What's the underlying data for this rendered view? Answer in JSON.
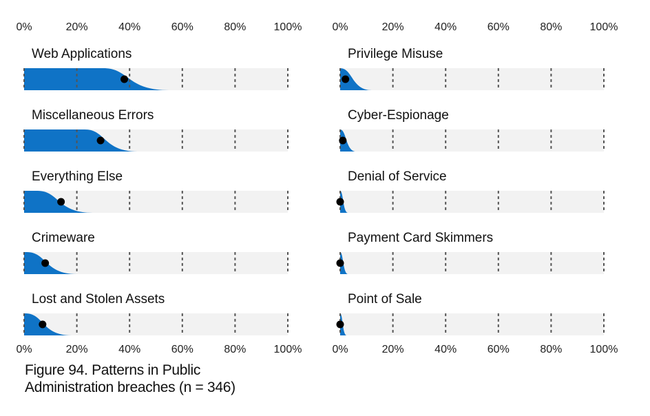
{
  "figure_caption": {
    "line1": "Figure 94. Patterns in Public",
    "line2": "Administration breaches (n = 346)"
  },
  "colors": {
    "distribution_fill": "#0f73c6",
    "track_background": "#f2f2f2",
    "gridline": "#555555",
    "point": "#000000"
  },
  "axis": {
    "ticks": [
      0,
      20,
      40,
      60,
      80,
      100
    ],
    "tick_labels": [
      "0%",
      "20%",
      "40%",
      "60%",
      "80%",
      "100%"
    ]
  },
  "chart_data": {
    "type": "area",
    "subtype": "distribution-with-point-estimate",
    "title": "Figure 94. Patterns in Public Administration breaches (n = 346)",
    "x_unit": "percent of breaches",
    "xlim": [
      0,
      100
    ],
    "grid": true,
    "panels": [
      {
        "name": "Web Applications",
        "column": "left",
        "value": 38,
        "distribution_full_to": 30,
        "distribution_end": 55
      },
      {
        "name": "Miscellaneous Errors",
        "column": "left",
        "value": 29,
        "distribution_full_to": 23,
        "distribution_end": 43
      },
      {
        "name": "Everything Else",
        "column": "left",
        "value": 14,
        "distribution_full_to": 5,
        "distribution_end": 26
      },
      {
        "name": "Crimeware",
        "column": "left",
        "value": 8,
        "distribution_full_to": 1,
        "distribution_end": 20
      },
      {
        "name": "Lost and Stolen Assets",
        "column": "left",
        "value": 7,
        "distribution_full_to": 0.5,
        "distribution_end": 18
      },
      {
        "name": "Privilege Misuse",
        "column": "right",
        "value": 2,
        "distribution_full_to": 0,
        "distribution_end": 12
      },
      {
        "name": "Cyber-Espionage",
        "column": "right",
        "value": 1,
        "distribution_full_to": 0,
        "distribution_end": 6
      },
      {
        "name": "Denial of Service",
        "column": "right",
        "value": 0,
        "distribution_full_to": 0,
        "distribution_end": 3
      },
      {
        "name": "Payment Card Skimmers",
        "column": "right",
        "value": 0,
        "distribution_full_to": 0,
        "distribution_end": 3
      },
      {
        "name": "Point of Sale",
        "column": "right",
        "value": 0,
        "distribution_full_to": 0,
        "distribution_end": 2.5
      }
    ]
  }
}
